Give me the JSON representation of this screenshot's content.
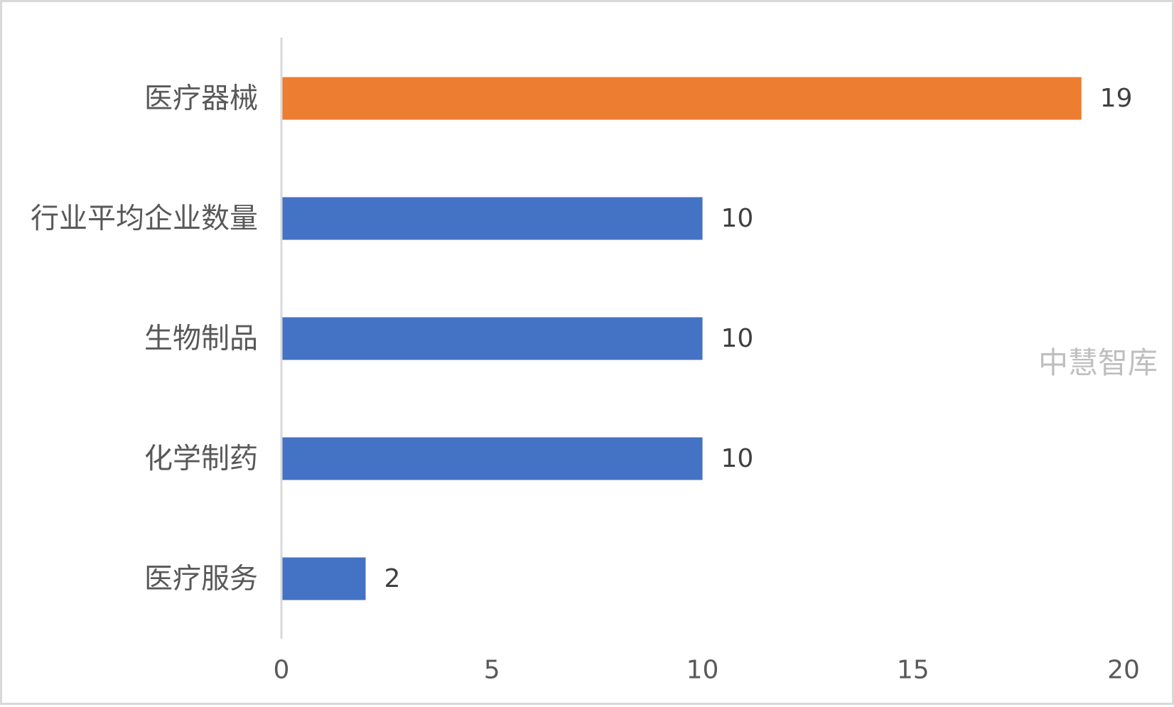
{
  "chart_data": {
    "type": "bar",
    "orientation": "horizontal",
    "categories": [
      "医疗器械",
      "行业平均企业数量",
      "生物制品",
      "化学制药",
      "医疗服务"
    ],
    "values": [
      19,
      10,
      10,
      10,
      2
    ],
    "bar_colors": [
      "#ED7D31",
      "#4472C4",
      "#4472C4",
      "#4472C4",
      "#4472C4"
    ],
    "data_labels": [
      "19",
      "10",
      "10",
      "10",
      "2"
    ],
    "xlim": [
      0,
      20
    ],
    "xticks": [
      "0",
      "5",
      "10",
      "15",
      "20"
    ],
    "grid": false,
    "legend": "none"
  },
  "watermark": "中慧智库"
}
